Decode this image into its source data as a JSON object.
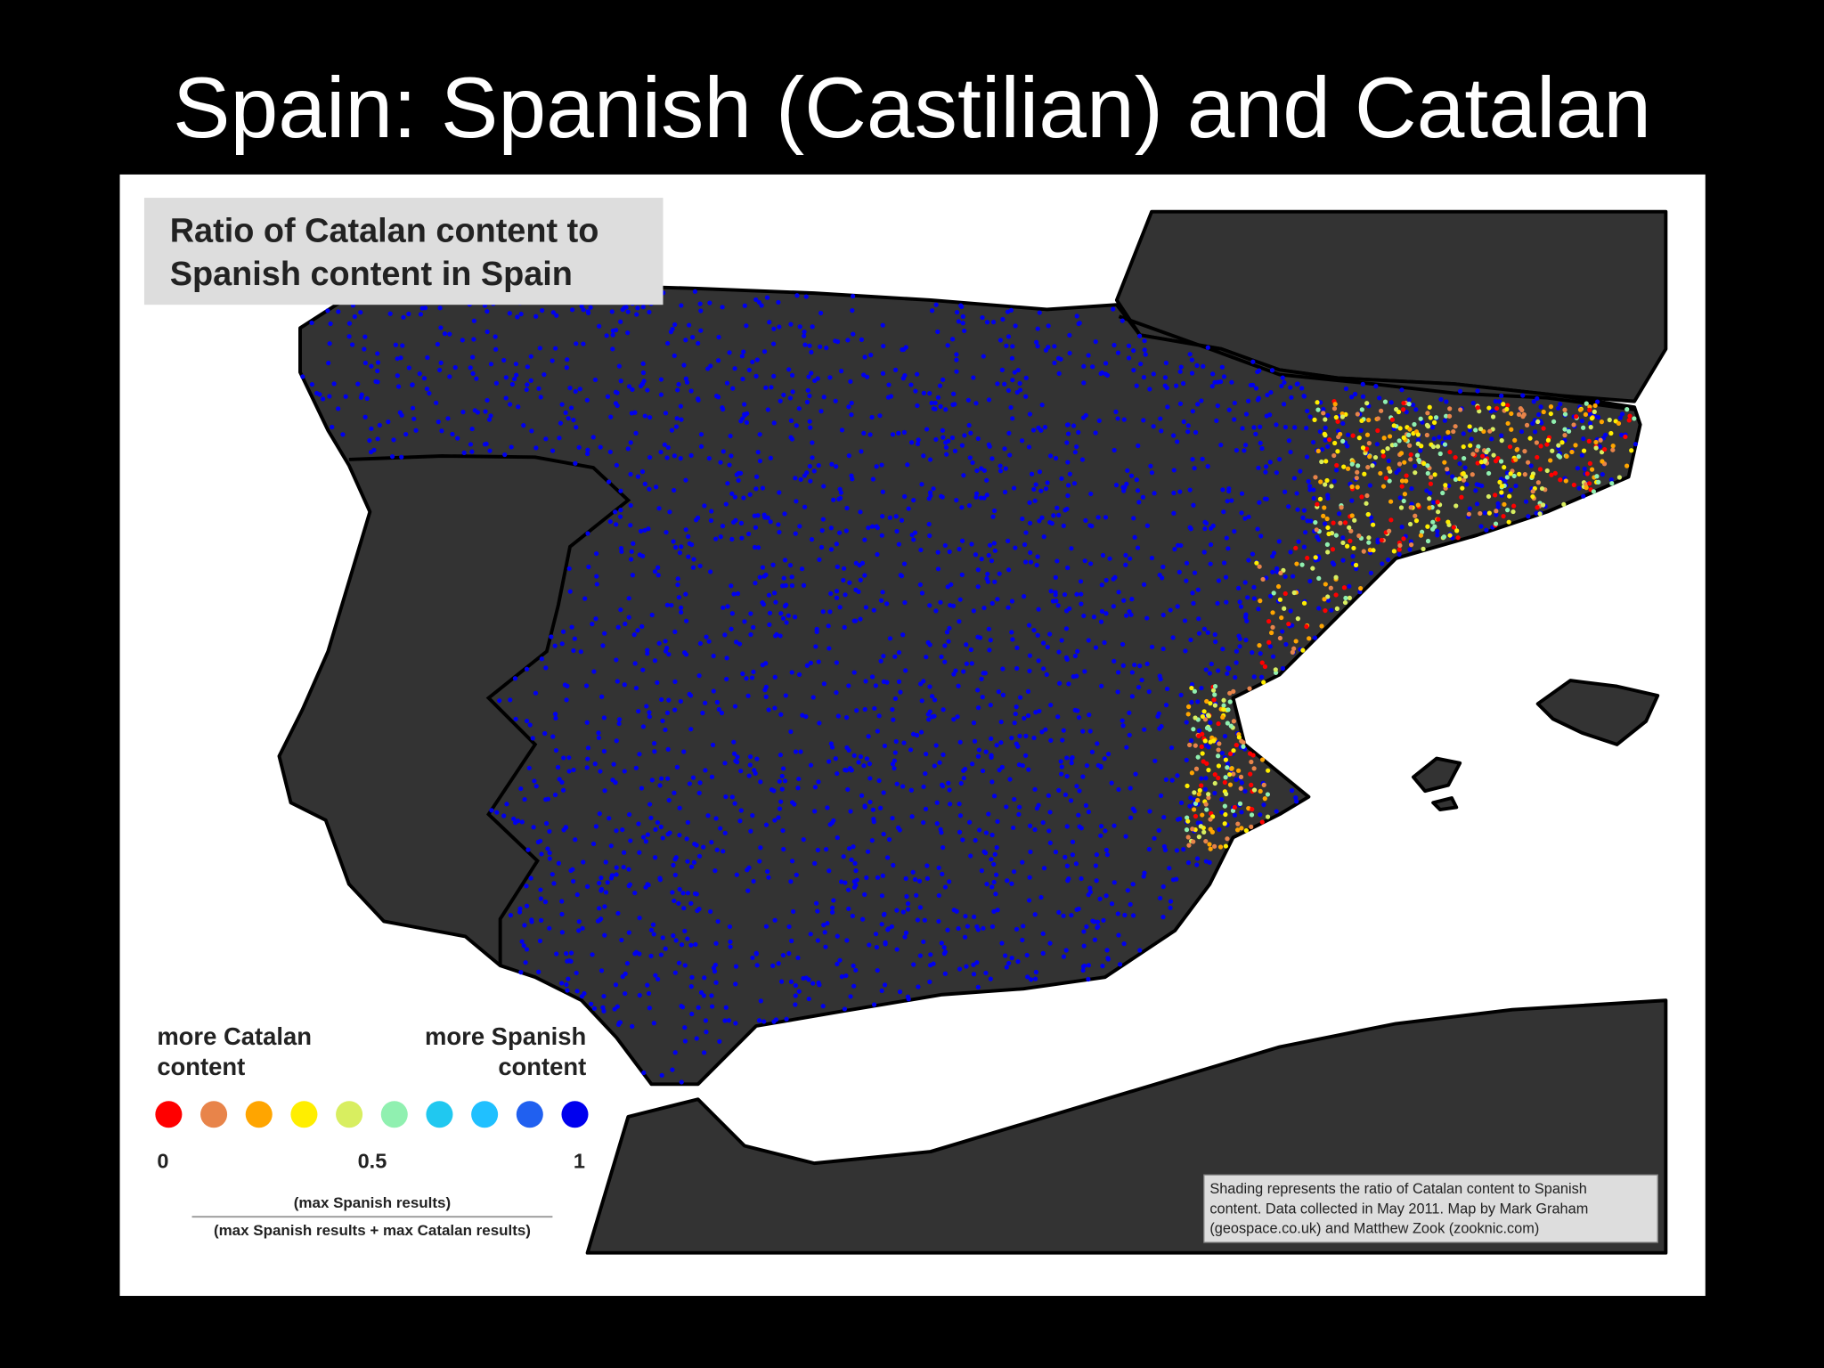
{
  "title": "Spain: Spanish (Castilian) and Catalan",
  "map": {
    "title_lines": [
      "Ratio of Catalan content to",
      "Spanish content in Spain"
    ],
    "legend": {
      "left_lines": [
        "more Catalan",
        "content"
      ],
      "right_lines": [
        "more Spanish",
        "content"
      ],
      "colors": [
        "#ff0000",
        "#e8844a",
        "#ffa500",
        "#ffee00",
        "#d8ee60",
        "#90f0b0",
        "#20c8f0",
        "#20c0ff",
        "#2060f0",
        "#0000ee"
      ],
      "scale_labels": [
        "0",
        "0.5",
        "1"
      ],
      "numerator": "(max Spanish results)",
      "denominator": "(max Spanish results + max Catalan results)"
    },
    "credit_lines": [
      "Shading represents the ratio of Catalan content to Spanish",
      "content. Data collected in May 2011. Map by Mark Graham",
      "(geospace.co.uk) and Matthew Zook (zooknic.com)"
    ]
  }
}
